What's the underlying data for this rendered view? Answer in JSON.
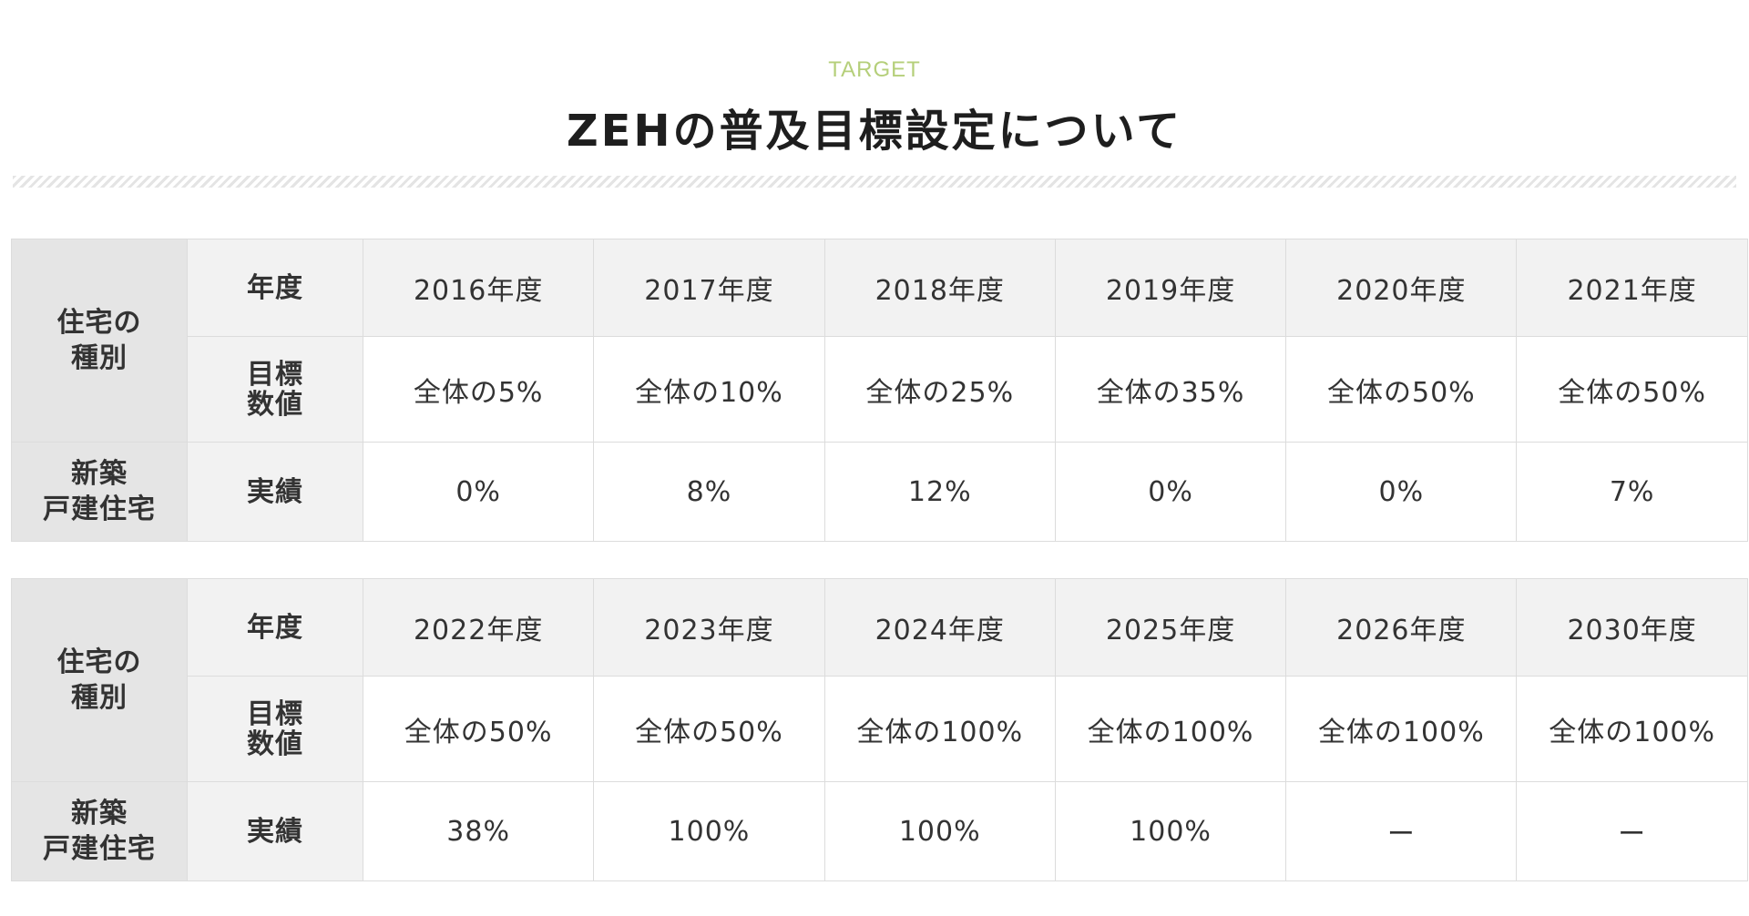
{
  "header": {
    "eyebrow": "TARGET",
    "title": "ZEHの普及目標設定について"
  },
  "colors": {
    "accent": "#b5cf7a",
    "title": "#1e1e1e",
    "type_header_bg": "#e5e5e5",
    "row_header_bg": "#f2f2f2",
    "border": "#dcdcdc"
  },
  "tables": [
    {
      "type_label": [
        "住宅の",
        "種別"
      ],
      "category_label": [
        "新築",
        "戸建住宅"
      ],
      "year_label": "年度",
      "target_label": [
        "目標",
        "数値"
      ],
      "actual_label": "実績",
      "years": [
        "2016年度",
        "2017年度",
        "2018年度",
        "2019年度",
        "2020年度",
        "2021年度"
      ],
      "targets": [
        "全体の5%",
        "全体の10%",
        "全体の25%",
        "全体の35%",
        "全体の50%",
        "全体の50%"
      ],
      "actuals": [
        "0%",
        "8%",
        "12%",
        "0%",
        "0%",
        "7%"
      ]
    },
    {
      "type_label": [
        "住宅の",
        "種別"
      ],
      "category_label": [
        "新築",
        "戸建住宅"
      ],
      "year_label": "年度",
      "target_label": [
        "目標",
        "数値"
      ],
      "actual_label": "実績",
      "years": [
        "2022年度",
        "2023年度",
        "2024年度",
        "2025年度",
        "2026年度",
        "2030年度"
      ],
      "targets": [
        "全体の50%",
        "全体の50%",
        "全体の100%",
        "全体の100%",
        "全体の100%",
        "全体の100%"
      ],
      "actuals": [
        "38%",
        "100%",
        "100%",
        "100%",
        "ー",
        "ー"
      ]
    }
  ]
}
